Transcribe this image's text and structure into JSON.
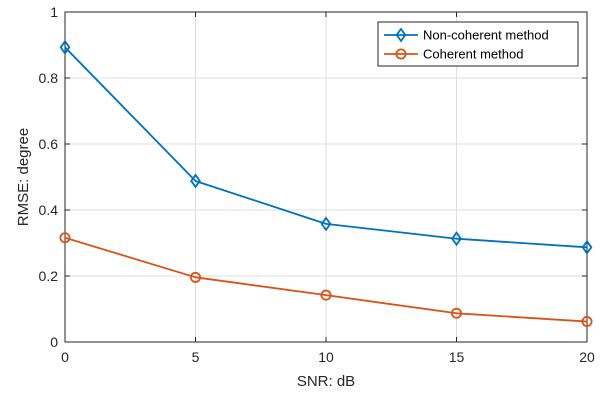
{
  "chart_data": {
    "type": "line",
    "x": [
      0,
      5,
      10,
      15,
      20
    ],
    "series": [
      {
        "name": "Non-coherent method",
        "values": [
          0.893,
          0.488,
          0.358,
          0.313,
          0.287
        ],
        "color": "#0072BD",
        "marker": "diamond"
      },
      {
        "name": "Coherent method",
        "values": [
          0.316,
          0.196,
          0.142,
          0.087,
          0.062
        ],
        "color": "#D95319",
        "marker": "circle"
      }
    ],
    "xlabel": "SNR: dB",
    "ylabel": "RMSE: degree",
    "xlim": [
      0,
      20
    ],
    "ylim": [
      0,
      1
    ],
    "xticks": [
      0,
      5,
      10,
      15,
      20
    ],
    "yticks": [
      0,
      0.2,
      0.4,
      0.6,
      0.8,
      1
    ],
    "xtick_labels": [
      "0",
      "5",
      "10",
      "15",
      "20"
    ],
    "ytick_labels": [
      "0",
      "0.2",
      "0.4",
      "0.6",
      "0.8",
      "1"
    ],
    "grid": true,
    "legend_position": "top-right"
  }
}
